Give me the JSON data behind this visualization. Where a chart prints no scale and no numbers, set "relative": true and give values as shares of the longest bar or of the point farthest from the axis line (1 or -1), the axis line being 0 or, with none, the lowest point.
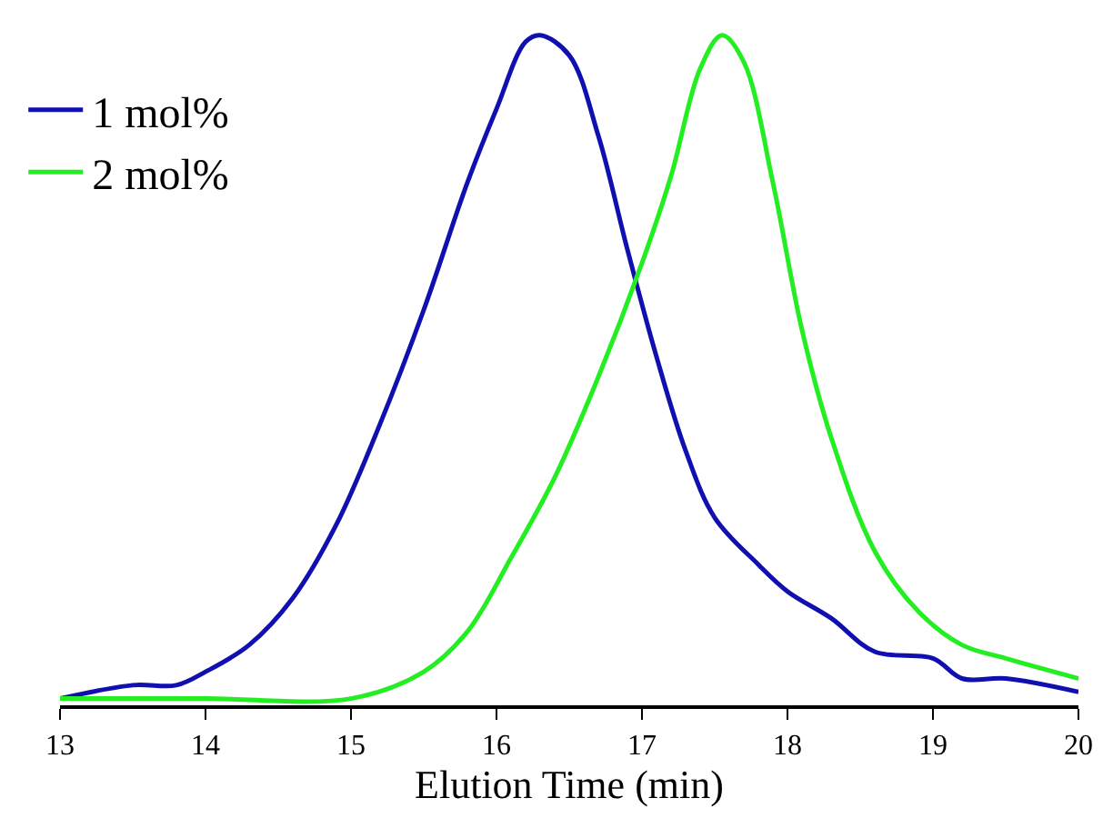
{
  "chart_data": {
    "type": "line",
    "relative": true,
    "xlabel": "Elution Time (min)",
    "xlim": [
      13,
      20
    ],
    "xticks": [
      13,
      14,
      15,
      16,
      17,
      18,
      19,
      20
    ],
    "tick_labels": "x",
    "legend": "top left",
    "marker": "none",
    "line_style": "solid",
    "series": [
      {
        "name": "1 mol%",
        "color": "#1010b0",
        "x": [
          13,
          13.5,
          13.8,
          14.0,
          14.3,
          14.6,
          14.9,
          15.2,
          15.5,
          15.8,
          16.0,
          16.2,
          16.3,
          16.5,
          16.7,
          16.9,
          17.1,
          17.3,
          17.5,
          17.8,
          18.0,
          18.3,
          18.6,
          19.0,
          19.2,
          19.5,
          20
        ],
        "values": [
          0.01,
          0.03,
          0.03,
          0.05,
          0.09,
          0.16,
          0.27,
          0.42,
          0.59,
          0.78,
          0.89,
          0.99,
          1.0,
          0.97,
          0.85,
          0.68,
          0.52,
          0.38,
          0.28,
          0.21,
          0.17,
          0.13,
          0.08,
          0.07,
          0.04,
          0.04,
          0.02
        ]
      },
      {
        "name": "2 mol%",
        "color": "#22ee22",
        "x": [
          13,
          14,
          15,
          15.5,
          15.8,
          16.1,
          16.4,
          16.7,
          17.0,
          17.2,
          17.4,
          17.55,
          17.7,
          17.9,
          18.1,
          18.3,
          18.6,
          18.9,
          19.2,
          19.5,
          20
        ],
        "values": [
          0.01,
          0.01,
          0.01,
          0.05,
          0.11,
          0.22,
          0.34,
          0.49,
          0.66,
          0.79,
          0.95,
          1.0,
          0.96,
          0.78,
          0.56,
          0.4,
          0.23,
          0.14,
          0.09,
          0.07,
          0.04
        ]
      }
    ]
  }
}
